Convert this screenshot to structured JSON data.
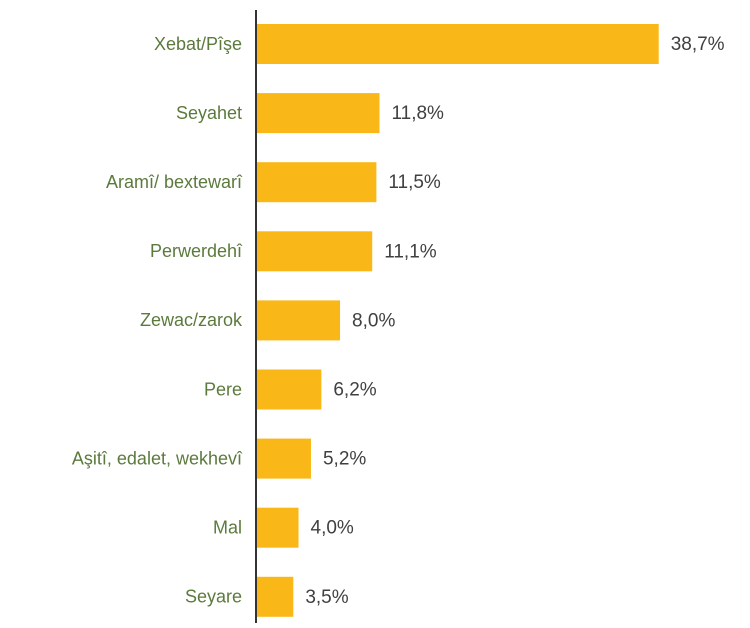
{
  "chart_data": {
    "type": "bar",
    "orientation": "horizontal",
    "categories": [
      "Xebat/Pîşe",
      "Seyahet",
      "Aramî/ bextewarî",
      "Perwerdehî",
      "Zewac/zarok",
      "Pere",
      "Aşitî, edalet, wekhevî",
      "Mal",
      "Seyare"
    ],
    "values": [
      38.7,
      11.8,
      11.5,
      11.1,
      8.0,
      6.2,
      5.2,
      4.0,
      3.5
    ],
    "value_labels": [
      "38,7%",
      "11,8%",
      "11,5%",
      "11,1%",
      "8,0%",
      "6,2%",
      "5,2%",
      "4,0%",
      "3,5%"
    ],
    "color": "#f9b817"
  }
}
